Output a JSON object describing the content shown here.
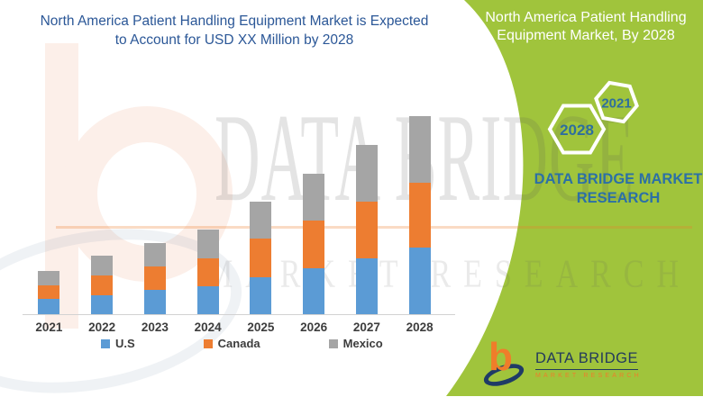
{
  "main_title": {
    "line1": "North America Patient Handling Equipment Market is Expected",
    "line2": "to Account for USD XX Million by 2028"
  },
  "side_panel": {
    "title": "North America Patient Handling Equipment Market, By 2028",
    "background_color": "#A0C43C",
    "hexagon_large_label": "2028",
    "hexagon_small_label": "2021",
    "brand_line1": "DATA BRIDGE MARKET",
    "brand_line2": "RESEARCH"
  },
  "watermark": {
    "line1": "DATA BRIDGE",
    "line2": "MARKET RESEARCH"
  },
  "logo": {
    "glyph": "b",
    "name": "DATA BRIDGE",
    "tagline": "MARKET RESEARCH"
  },
  "chart_data": {
    "type": "bar",
    "stacked": true,
    "title": "North America Patient Handling Equipment Market is Expected to Account for USD XX Million by 2028",
    "categories": [
      "2021",
      "2022",
      "2023",
      "2024",
      "2025",
      "2026",
      "2027",
      "2028"
    ],
    "series": [
      {
        "name": "U.S",
        "color": "#5B9BD5",
        "values": [
          17,
          21,
          27,
          31,
          41,
          51,
          62,
          74
        ]
      },
      {
        "name": "Canada",
        "color": "#ED7D31",
        "values": [
          15,
          22,
          26,
          31,
          43,
          53,
          63,
          72
        ]
      },
      {
        "name": "Mexico",
        "color": "#A5A5A5",
        "values": [
          16,
          22,
          26,
          32,
          41,
          52,
          63,
          74
        ]
      }
    ],
    "totals": [
      48,
      65,
      79,
      94,
      125,
      156,
      188,
      220
    ],
    "xlabel": "",
    "ylabel": "",
    "units": "relative units — value axis hidden, amounts masked as USD XX Million",
    "ylim": [
      0,
      221
    ],
    "grid": false,
    "legend_position": "bottom"
  }
}
